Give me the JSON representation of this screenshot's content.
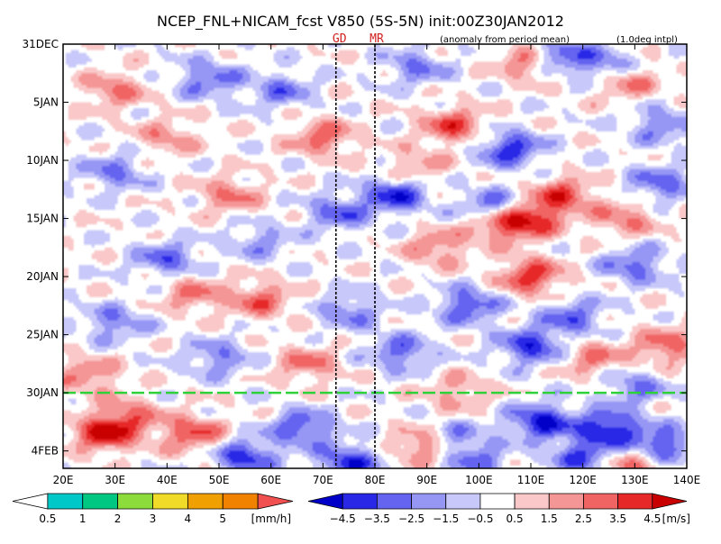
{
  "chart_data": {
    "type": "heatmap",
    "title": "NCEP_FNL+NICAM_fcst V850 (5S-5N) init:00Z30JAN2012",
    "subtitle_left": "(anomaly from period mean)",
    "subtitle_right": "(1.0deg intpl)",
    "x_ticks": [
      {
        "lon": 20,
        "label": "20E"
      },
      {
        "lon": 30,
        "label": "30E"
      },
      {
        "lon": 40,
        "label": "40E"
      },
      {
        "lon": 50,
        "label": "50E"
      },
      {
        "lon": 60,
        "label": "60E"
      },
      {
        "lon": 70,
        "label": "70E"
      },
      {
        "lon": 80,
        "label": "80E"
      },
      {
        "lon": 90,
        "label": "90E"
      },
      {
        "lon": 100,
        "label": "100E"
      },
      {
        "lon": 110,
        "label": "110E"
      },
      {
        "lon": 120,
        "label": "120E"
      },
      {
        "lon": 130,
        "label": "130E"
      },
      {
        "lon": 140,
        "label": "140E"
      }
    ],
    "xlim": [
      20,
      140
    ],
    "y_ticks": [
      {
        "day": 0,
        "label": "31DEC"
      },
      {
        "day": 5,
        "label": "5JAN"
      },
      {
        "day": 10,
        "label": "10JAN"
      },
      {
        "day": 15,
        "label": "15JAN"
      },
      {
        "day": 20,
        "label": "20JAN"
      },
      {
        "day": 25,
        "label": "25JAN"
      },
      {
        "day": 30,
        "label": "30JAN"
      },
      {
        "day": 35,
        "label": "4FEB"
      }
    ],
    "ylim_days": [
      0,
      36.5
    ],
    "forecast_start_day": 30,
    "markers": [
      {
        "lon": 72.5,
        "label": "GD"
      },
      {
        "lon": 80.0,
        "label": "MR"
      }
    ],
    "wind_colorbar": {
      "unit": "[m/s]",
      "labels": [
        "-4.5",
        "-3.5",
        "-2.5",
        "-1.5",
        "-0.5",
        "0.5",
        "1.5",
        "2.5",
        "3.5",
        "4.5"
      ],
      "colors": [
        "#0000c8",
        "#2828e6",
        "#6464f0",
        "#9696f5",
        "#c8c8fa",
        "#ffffff",
        "#fac8c8",
        "#f59696",
        "#f06464",
        "#e62828",
        "#c80000"
      ]
    },
    "rain_colorbar": {
      "unit": "[mm/h]",
      "labels": [
        "0.5",
        "1",
        "2",
        "3",
        "4",
        "5"
      ],
      "colors": [
        "#ffffff",
        "#00c8c8",
        "#00c882",
        "#8cdc3c",
        "#f0dc28",
        "#f0a000",
        "#f08200",
        "#f05050"
      ]
    },
    "anomaly_centers": [
      {
        "lon": 28,
        "day": 33.5,
        "value": 4.5
      },
      {
        "lon": 45,
        "day": 33.5,
        "value": 3.5
      },
      {
        "lon": 55,
        "day": 35.5,
        "value": -4.0
      },
      {
        "lon": 75,
        "day": 36.0,
        "value": -4.0
      },
      {
        "lon": 66,
        "day": 33.0,
        "value": -3.5
      },
      {
        "lon": 90,
        "day": 34.5,
        "value": 3.5
      },
      {
        "lon": 95,
        "day": 34.0,
        "value": -3.0
      },
      {
        "lon": 112,
        "day": 32.5,
        "value": -4.5
      },
      {
        "lon": 125,
        "day": 33.0,
        "value": -4.5
      },
      {
        "lon": 135,
        "day": 34.5,
        "value": -4.0
      },
      {
        "lon": 120,
        "day": 35.5,
        "value": -3.5
      },
      {
        "lon": 130,
        "day": 36.2,
        "value": 3.0
      },
      {
        "lon": 100,
        "day": 36.0,
        "value": -2.5
      },
      {
        "lon": 33,
        "day": 32.0,
        "value": 2.5
      },
      {
        "lon": 95,
        "day": 7.0,
        "value": 3.5
      },
      {
        "lon": 70,
        "day": 8.0,
        "value": 3.0
      },
      {
        "lon": 110,
        "day": 1.5,
        "value": 3.5
      },
      {
        "lon": 128,
        "day": 3.0,
        "value": 3.5
      },
      {
        "lon": 115,
        "day": 1.0,
        "value": -4.0
      },
      {
        "lon": 125,
        "day": 2.0,
        "value": -3.5
      },
      {
        "lon": 106,
        "day": 9.0,
        "value": -4.0
      },
      {
        "lon": 103,
        "day": 14.0,
        "value": -3.5
      },
      {
        "lon": 110,
        "day": 15.0,
        "value": 4.0
      },
      {
        "lon": 116,
        "day": 13.0,
        "value": 3.5
      },
      {
        "lon": 104,
        "day": 15.5,
        "value": 3.5
      },
      {
        "lon": 110,
        "day": 20.0,
        "value": 4.0
      },
      {
        "lon": 84,
        "day": 13.0,
        "value": -4.0
      },
      {
        "lon": 73,
        "day": 14.5,
        "value": -3.0
      },
      {
        "lon": 98,
        "day": 22.5,
        "value": -3.5
      },
      {
        "lon": 110,
        "day": 26.0,
        "value": -4.0
      },
      {
        "lon": 118,
        "day": 23.5,
        "value": -3.0
      },
      {
        "lon": 130,
        "day": 19.0,
        "value": -3.0
      },
      {
        "lon": 135,
        "day": 12.0,
        "value": -3.0
      },
      {
        "lon": 136,
        "day": 26.0,
        "value": 3.0
      },
      {
        "lon": 122,
        "day": 27.0,
        "value": 2.5
      },
      {
        "lon": 58,
        "day": 22.0,
        "value": 3.0
      },
      {
        "lon": 45,
        "day": 21.5,
        "value": 2.5
      },
      {
        "lon": 40,
        "day": 18.5,
        "value": -3.0
      },
      {
        "lon": 52,
        "day": 13.0,
        "value": 2.5
      },
      {
        "lon": 30,
        "day": 11.0,
        "value": -2.5
      },
      {
        "lon": 48,
        "day": 3.0,
        "value": -3.0
      },
      {
        "lon": 62,
        "day": 4.0,
        "value": -2.5
      },
      {
        "lon": 30,
        "day": 4.0,
        "value": 2.5
      },
      {
        "lon": 40,
        "day": 8.0,
        "value": 2.0
      },
      {
        "lon": 85,
        "day": 26.5,
        "value": -3.0
      },
      {
        "lon": 92,
        "day": 17.5,
        "value": 2.5
      },
      {
        "lon": 75,
        "day": 23.0,
        "value": -2.5
      },
      {
        "lon": 67,
        "day": 27.5,
        "value": 2.5
      },
      {
        "lon": 25,
        "day": 28.5,
        "value": 2.5
      },
      {
        "lon": 30,
        "day": 24.0,
        "value": -2.5
      },
      {
        "lon": 88,
        "day": 2.0,
        "value": -2.5
      },
      {
        "lon": 135,
        "day": 7.0,
        "value": -2.5
      },
      {
        "lon": 128,
        "day": 15.0,
        "value": 2.5
      },
      {
        "lon": 58,
        "day": 17.0,
        "value": -2.0
      },
      {
        "lon": 88,
        "day": 10.5,
        "value": 2.0
      },
      {
        "lon": 50,
        "day": 27.0,
        "value": -2.5
      },
      {
        "lon": 96,
        "day": 30.0,
        "value": 2.0
      },
      {
        "lon": 130,
        "day": 29.5,
        "value": -2.5
      }
    ]
  }
}
